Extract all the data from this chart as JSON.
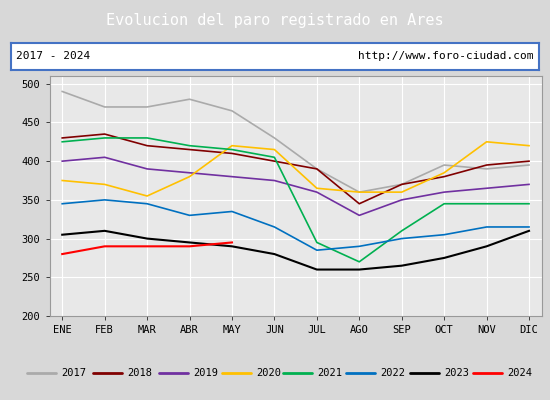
{
  "title": "Evolucion del paro registrado en Ares",
  "title_bg": "#4472c4",
  "subtitle_left": "2017 - 2024",
  "subtitle_right": "http://www.foro-ciudad.com",
  "months": [
    "ENE",
    "FEB",
    "MAR",
    "ABR",
    "MAY",
    "JUN",
    "JUL",
    "AGO",
    "SEP",
    "OCT",
    "NOV",
    "DIC"
  ],
  "ylim": [
    200,
    510
  ],
  "yticks": [
    200,
    250,
    300,
    350,
    400,
    450,
    500
  ],
  "series": {
    "2017": {
      "color": "#aaaaaa",
      "linewidth": 1.2,
      "values": [
        490,
        470,
        470,
        480,
        465,
        430,
        390,
        360,
        370,
        395,
        390,
        395
      ]
    },
    "2018": {
      "color": "#800000",
      "linewidth": 1.2,
      "values": [
        430,
        435,
        420,
        415,
        410,
        400,
        390,
        345,
        370,
        380,
        395,
        400
      ]
    },
    "2019": {
      "color": "#7030a0",
      "linewidth": 1.2,
      "values": [
        400,
        405,
        390,
        385,
        380,
        375,
        360,
        330,
        350,
        360,
        365,
        370
      ]
    },
    "2020": {
      "color": "#ffc000",
      "linewidth": 1.2,
      "values": [
        375,
        370,
        355,
        380,
        420,
        415,
        365,
        360,
        360,
        385,
        425,
        420
      ]
    },
    "2021": {
      "color": "#00b050",
      "linewidth": 1.2,
      "values": [
        425,
        430,
        430,
        420,
        415,
        405,
        295,
        270,
        310,
        345,
        345,
        345
      ]
    },
    "2022": {
      "color": "#0070c0",
      "linewidth": 1.2,
      "values": [
        345,
        350,
        345,
        330,
        335,
        315,
        285,
        290,
        300,
        305,
        315,
        315
      ]
    },
    "2023": {
      "color": "#000000",
      "linewidth": 1.5,
      "values": [
        305,
        310,
        300,
        295,
        290,
        280,
        260,
        260,
        265,
        275,
        290,
        310
      ]
    },
    "2024": {
      "color": "#ff0000",
      "linewidth": 1.5,
      "values": [
        280,
        290,
        290,
        290,
        295,
        null,
        null,
        null,
        null,
        null,
        null,
        null
      ]
    }
  },
  "bg_color": "#d8d8d8",
  "plot_bg": "#e8e8e8",
  "grid_color": "#ffffff"
}
